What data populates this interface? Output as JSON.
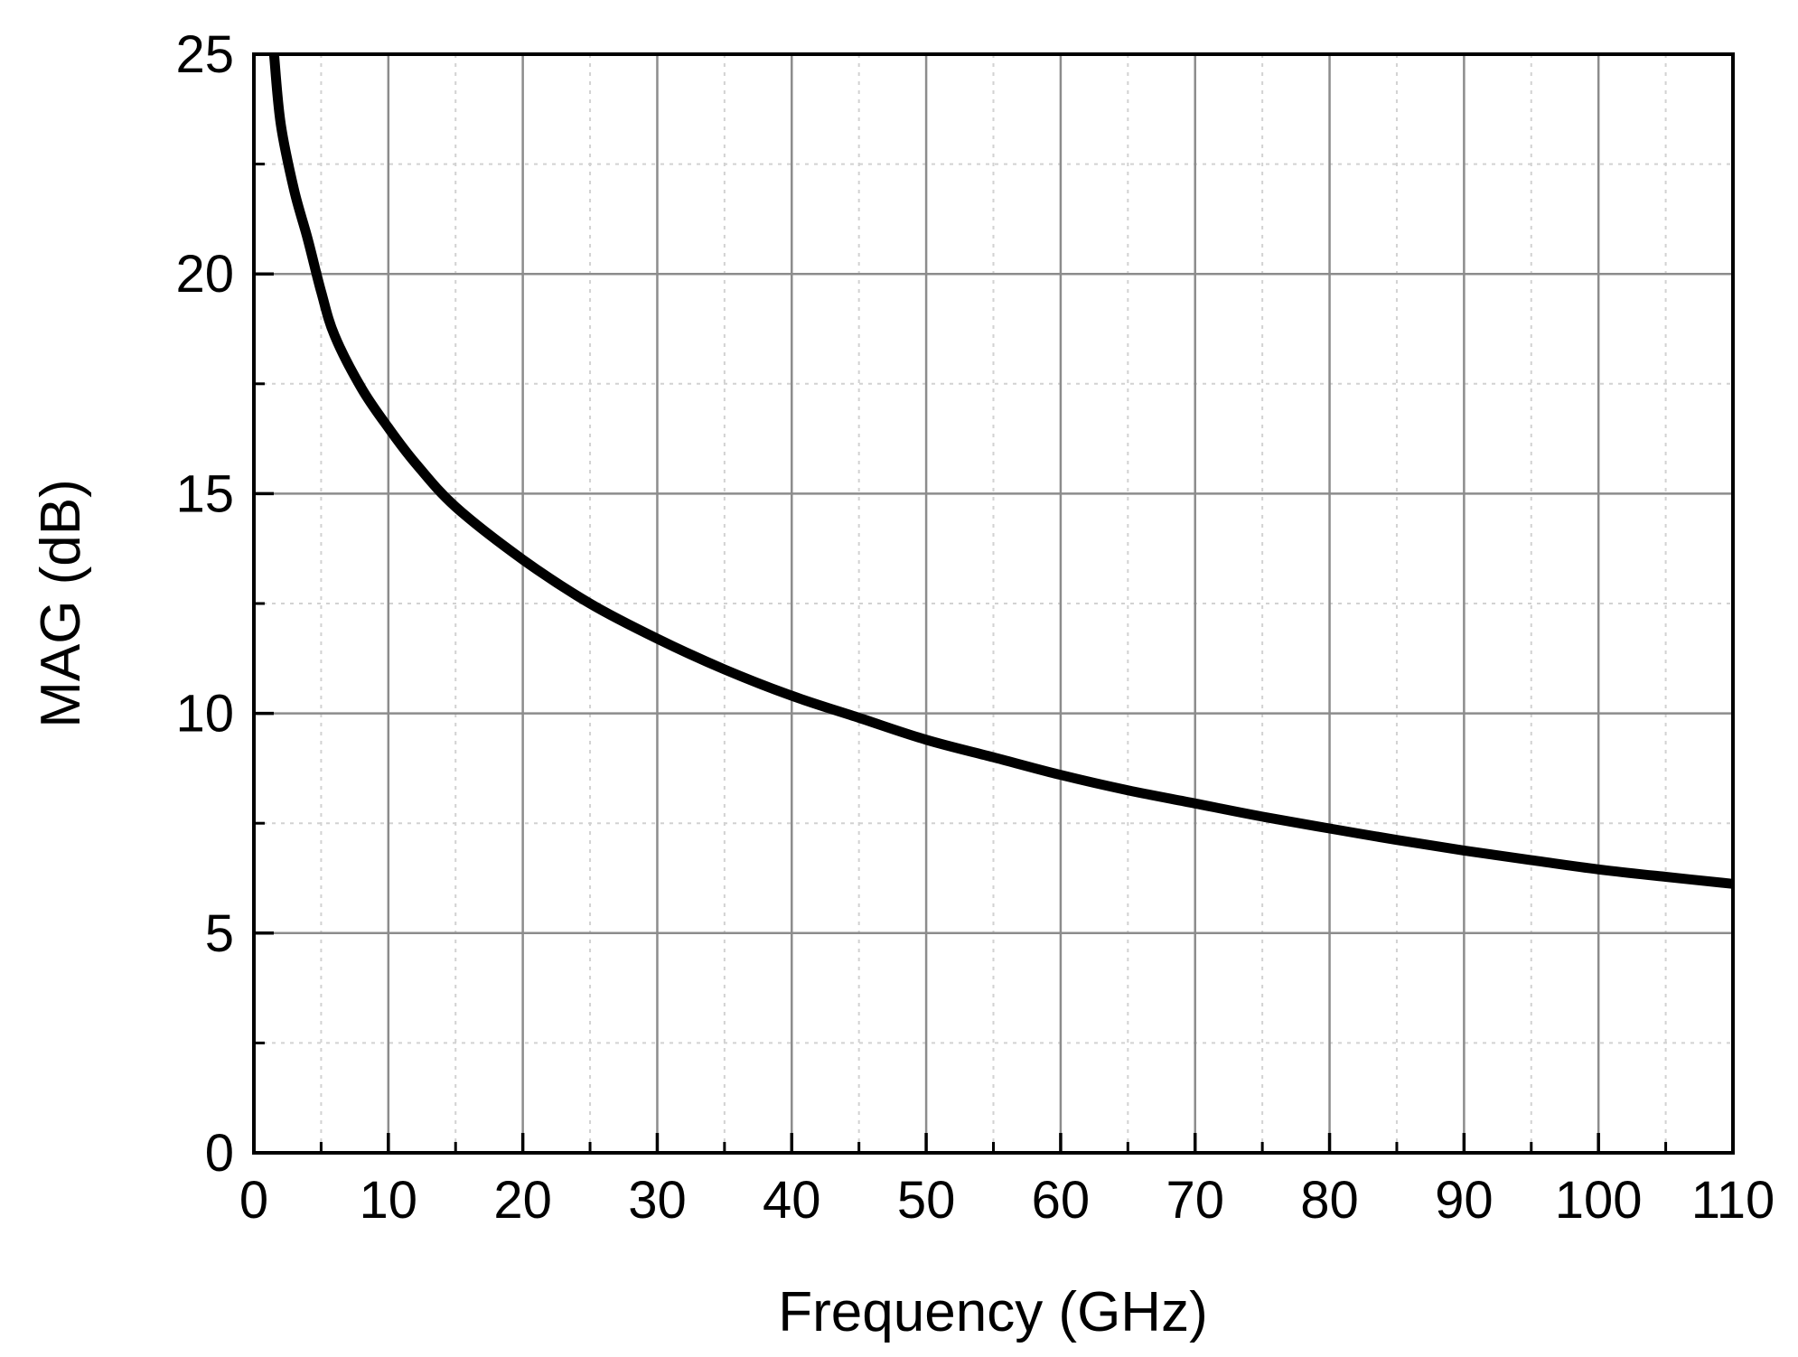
{
  "chart_data": {
    "type": "line",
    "xlabel": "Frequency (GHz)",
    "ylabel": "MAG (dB)",
    "xlim": [
      0,
      110
    ],
    "ylim": [
      0,
      25
    ],
    "x_ticks": [
      "0",
      "10",
      "20",
      "30",
      "40",
      "50",
      "60",
      "70",
      "80",
      "90",
      "100",
      "110"
    ],
    "y_ticks": [
      "0",
      "5",
      "10",
      "15",
      "20",
      "25"
    ],
    "grid": true,
    "minor_grid": true,
    "legend": "none",
    "colors": {
      "line": "#000000",
      "major_grid": "#8c8c8c",
      "minor_grid": "#d2d2d2",
      "frame": "#000000"
    },
    "series": [
      {
        "x": [
          1.5,
          2,
          3,
          4,
          5,
          6,
          8,
          10,
          12,
          15,
          20,
          25,
          30,
          35,
          40,
          45,
          50,
          55,
          60,
          65,
          70,
          75,
          80,
          85,
          90,
          95,
          100,
          105,
          110
        ],
        "values": [
          25.0,
          23.4,
          21.9,
          20.8,
          19.6,
          18.6,
          17.4,
          16.5,
          15.7,
          14.7,
          13.5,
          12.5,
          11.7,
          11.0,
          10.4,
          9.9,
          9.4,
          9.0,
          8.6,
          8.25,
          7.95,
          7.65,
          7.38,
          7.12,
          6.88,
          6.66,
          6.45,
          6.28,
          6.12
        ]
      }
    ]
  }
}
